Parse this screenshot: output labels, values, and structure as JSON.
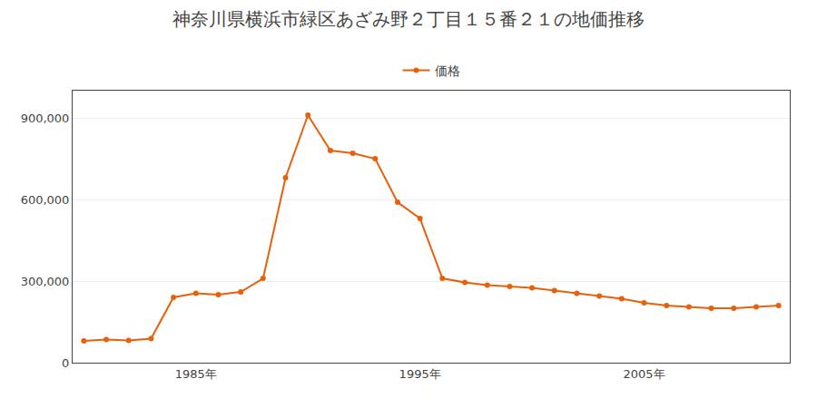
{
  "chart_data": {
    "type": "line",
    "title": "神奈川県横浜市緑区あざみ野２丁目１５番２１の地価推移",
    "x": [
      1980,
      1981,
      1982,
      1983,
      1984,
      1985,
      1986,
      1987,
      1988,
      1989,
      1990,
      1991,
      1992,
      1993,
      1994,
      1995,
      1996,
      1997,
      1998,
      1999,
      2000,
      2001,
      2002,
      2003,
      2004,
      2005,
      2006,
      2007,
      2008,
      2009,
      2010,
      2011
    ],
    "series": [
      {
        "name": "価格",
        "color": "#e8600a",
        "marker": "circle",
        "values": [
          80000,
          85000,
          82000,
          88000,
          240000,
          255000,
          250000,
          260000,
          310000,
          680000,
          910000,
          780000,
          770000,
          750000,
          590000,
          530000,
          310000,
          295000,
          285000,
          280000,
          275000,
          265000,
          255000,
          245000,
          235000,
          220000,
          210000,
          205000,
          200000,
          200000,
          205000,
          210000
        ]
      }
    ],
    "xlim": [
      1979.5,
      2011.5
    ],
    "xticks": [
      {
        "value": 1985,
        "label": "1985年"
      },
      {
        "value": 1995,
        "label": "1995年"
      },
      {
        "value": 2005,
        "label": "2005年"
      }
    ],
    "ylim": [
      0,
      1000000
    ],
    "yticks": [
      0,
      {
        "value": 300000,
        "label": "300,000"
      },
      {
        "value": 600000,
        "label": "600,000"
      },
      {
        "value": 900000,
        "label": "900,000"
      }
    ],
    "grid": "y",
    "legend": "top"
  }
}
